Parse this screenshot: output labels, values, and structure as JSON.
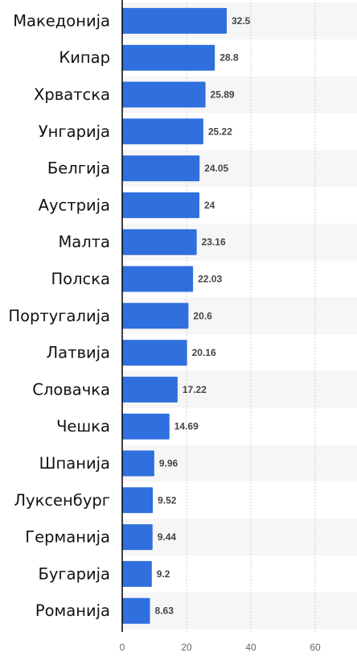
{
  "chart_data": {
    "type": "bar",
    "orientation": "horizontal",
    "categories": [
      "Македонија",
      "Кипар",
      "Хрватска",
      "Унгарија",
      "Белгија",
      "Аустрија",
      "Малта",
      "Полска",
      "Португалија",
      "Латвија",
      "Словачка",
      "Чешка",
      "Шпанија",
      "Луксенбург",
      "Германија",
      "Бугарија",
      "Романија"
    ],
    "values": [
      32.5,
      28.8,
      25.89,
      25.22,
      24.05,
      24,
      23.16,
      22.03,
      20.6,
      20.16,
      17.22,
      14.69,
      9.96,
      9.52,
      9.44,
      9.2,
      8.63
    ],
    "value_labels": [
      "32.5",
      "28.8",
      "25.89",
      "25.22",
      "24.05",
      "24",
      "23.16",
      "22.03",
      "20.6",
      "20.16",
      "17.22",
      "14.69",
      "9.96",
      "9.52",
      "9.44",
      "9.2",
      "8.63"
    ],
    "x_ticks": [
      0,
      20,
      40,
      60
    ],
    "xlim": [
      0,
      73
    ],
    "title": "",
    "xlabel": "",
    "ylabel": "",
    "grid": "vertical dashed",
    "legend": "none",
    "colors": {
      "bar": "#2f6fde",
      "stripe": "#f6f6f6",
      "grid": "#cfcfcf",
      "axis": "#000000"
    }
  }
}
